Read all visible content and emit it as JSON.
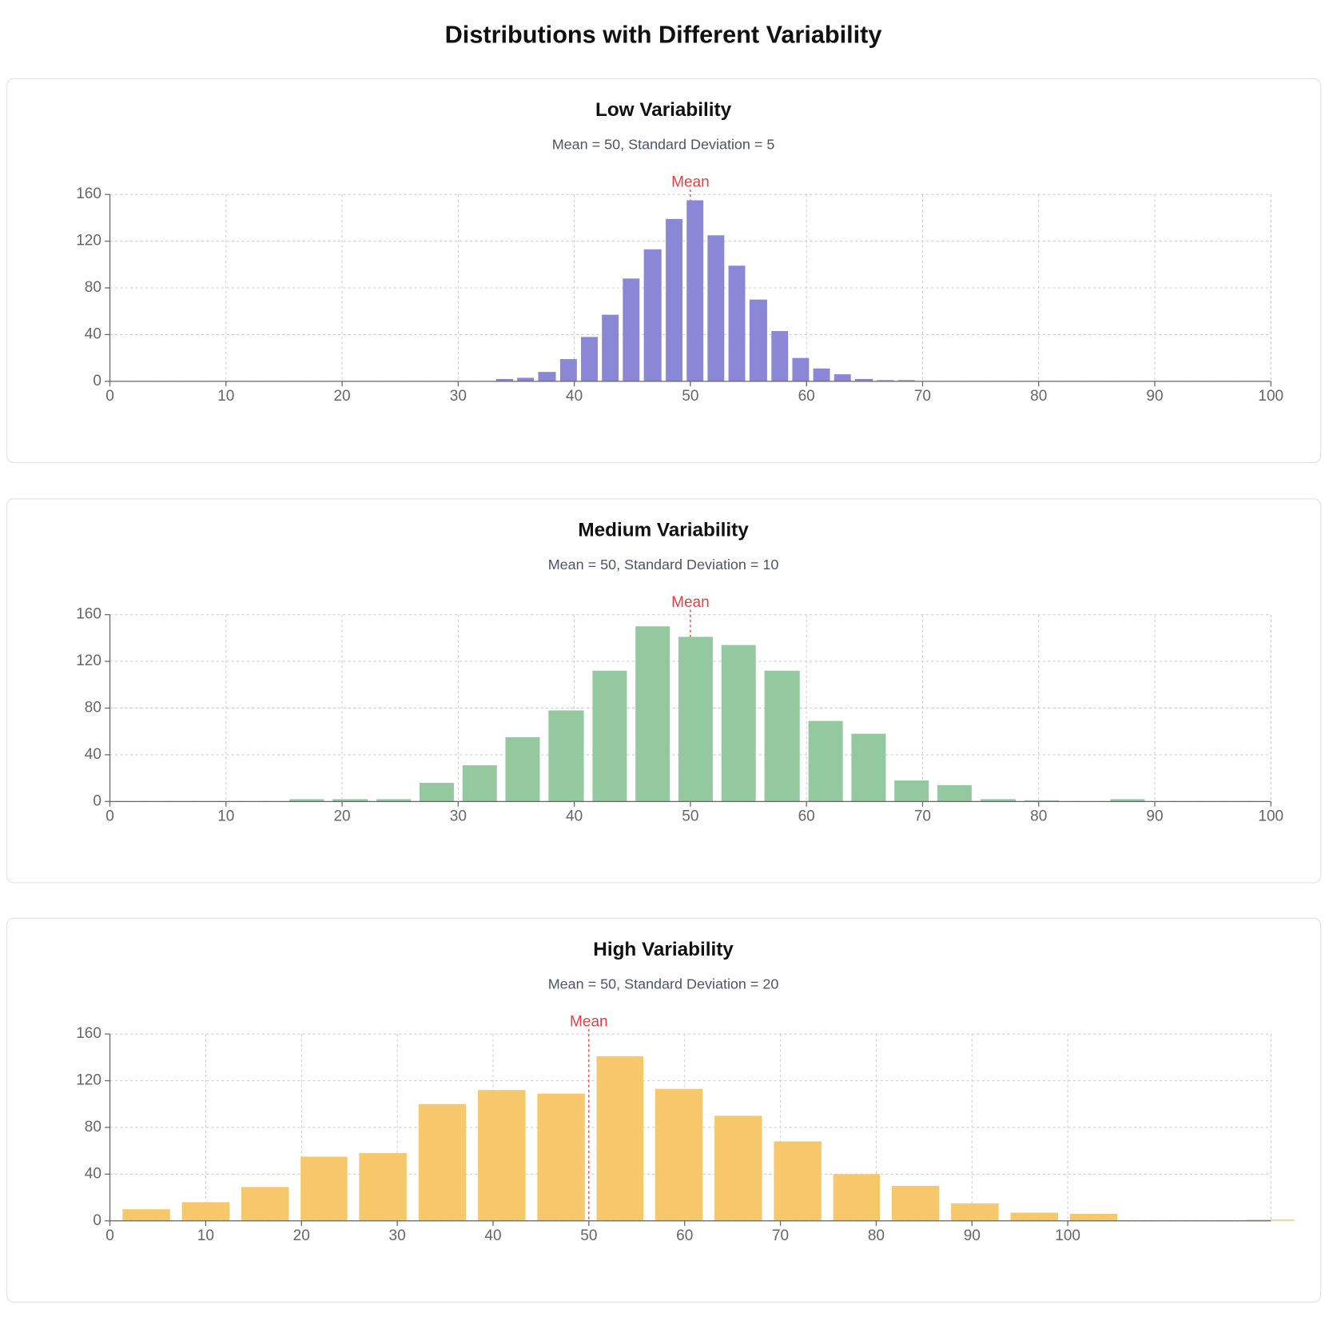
{
  "title": "Distributions with Different Variability",
  "chart_data": [
    {
      "type": "histogram",
      "title": "Low Variability",
      "subtitle": "Mean = 50, Standard Deviation = 5",
      "bins": [
        33.1,
        34.9,
        36.7,
        38.6,
        40.4,
        42.2,
        44.0,
        45.8,
        47.7,
        49.5,
        51.3,
        53.1,
        54.9,
        56.8,
        58.6,
        60.4,
        62.2,
        64.0,
        65.9,
        67.7,
        69.5
      ],
      "values": [
        2,
        3,
        8,
        19,
        38,
        57,
        88,
        113,
        139,
        155,
        125,
        99,
        70,
        43,
        20,
        11,
        6,
        2,
        1,
        1
      ],
      "color": "#8987d6",
      "mean": 50,
      "mean_label": "Mean",
      "xlim": [
        0,
        100
      ],
      "xticks": [
        0,
        10,
        20,
        30,
        40,
        50,
        60,
        70,
        80,
        90,
        100
      ],
      "ylim": [
        0,
        160
      ],
      "yticks": [
        0,
        40,
        80,
        120,
        160
      ],
      "grid": true
    },
    {
      "type": "histogram",
      "title": "Medium Variability",
      "subtitle": "Mean = 50, Standard Deviation = 10",
      "bins": [
        15.1,
        18.8,
        22.6,
        26.3,
        30.0,
        33.7,
        37.4,
        41.2,
        44.9,
        48.6,
        52.3,
        56.0,
        59.8,
        63.5,
        67.2,
        70.9,
        74.6,
        78.4,
        82.1,
        85.8,
        89.5
      ],
      "values": [
        2,
        2,
        2,
        16,
        31,
        55,
        78,
        112,
        150,
        141,
        134,
        112,
        69,
        58,
        18,
        14,
        2,
        1,
        0,
        2
      ],
      "color": "#94c9a0",
      "mean": 50,
      "mean_label": "Mean",
      "xlim": [
        0,
        100
      ],
      "xticks": [
        0,
        10,
        20,
        30,
        40,
        50,
        60,
        70,
        80,
        90,
        100
      ],
      "ylim": [
        0,
        160
      ],
      "yticks": [
        0,
        40,
        80,
        120,
        160
      ],
      "grid": true
    },
    {
      "type": "histogram",
      "title": "High Variability",
      "subtitle": "Mean = 50, Standard Deviation = 20",
      "bins": [
        0.7,
        6.9,
        13.1,
        19.3,
        25.4,
        31.6,
        37.8,
        44.0,
        50.2,
        56.3,
        62.5,
        68.7,
        74.9,
        81.0,
        87.2,
        93.4,
        99.6,
        105.8,
        111.9,
        118.1,
        124.3
      ],
      "values": [
        10,
        16,
        29,
        55,
        58,
        100,
        112,
        109,
        141,
        113,
        90,
        68,
        40,
        30,
        15,
        7,
        6,
        0,
        0,
        1
      ],
      "color": "#f6c86b",
      "mean": 50,
      "mean_label": "Mean",
      "xlim": [
        0,
        121.2
      ],
      "xticks": [
        0,
        10,
        20,
        30,
        40,
        50,
        60,
        70,
        80,
        90,
        100
      ],
      "ylim": [
        0,
        160
      ],
      "yticks": [
        0,
        40,
        80,
        120,
        160
      ],
      "grid": true
    }
  ]
}
